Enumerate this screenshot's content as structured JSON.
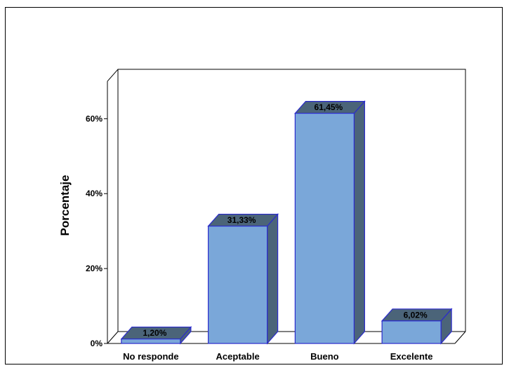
{
  "chart_data": {
    "type": "bar",
    "categories": [
      "No responde",
      "Aceptable",
      "Bueno",
      "Excelente"
    ],
    "values": [
      1.2,
      31.33,
      61.45,
      6.02
    ],
    "data_labels": [
      "1,20%",
      "31,33%",
      "61,45%",
      "6,02%"
    ],
    "title": "",
    "xlabel": "",
    "ylabel": "Porcentaje",
    "ylim": [
      0,
      70
    ],
    "yticks": [
      0,
      20,
      40,
      60
    ],
    "ytick_labels": [
      "0%",
      "20%",
      "40%",
      "60%"
    ],
    "grid": false,
    "legend": "none",
    "three_d": true,
    "colors": {
      "bar_front": "#7aa7d9",
      "bar_side": "#4b6479",
      "bar_top": "#4b6479",
      "bar_edge": "#2b2bcc"
    }
  }
}
